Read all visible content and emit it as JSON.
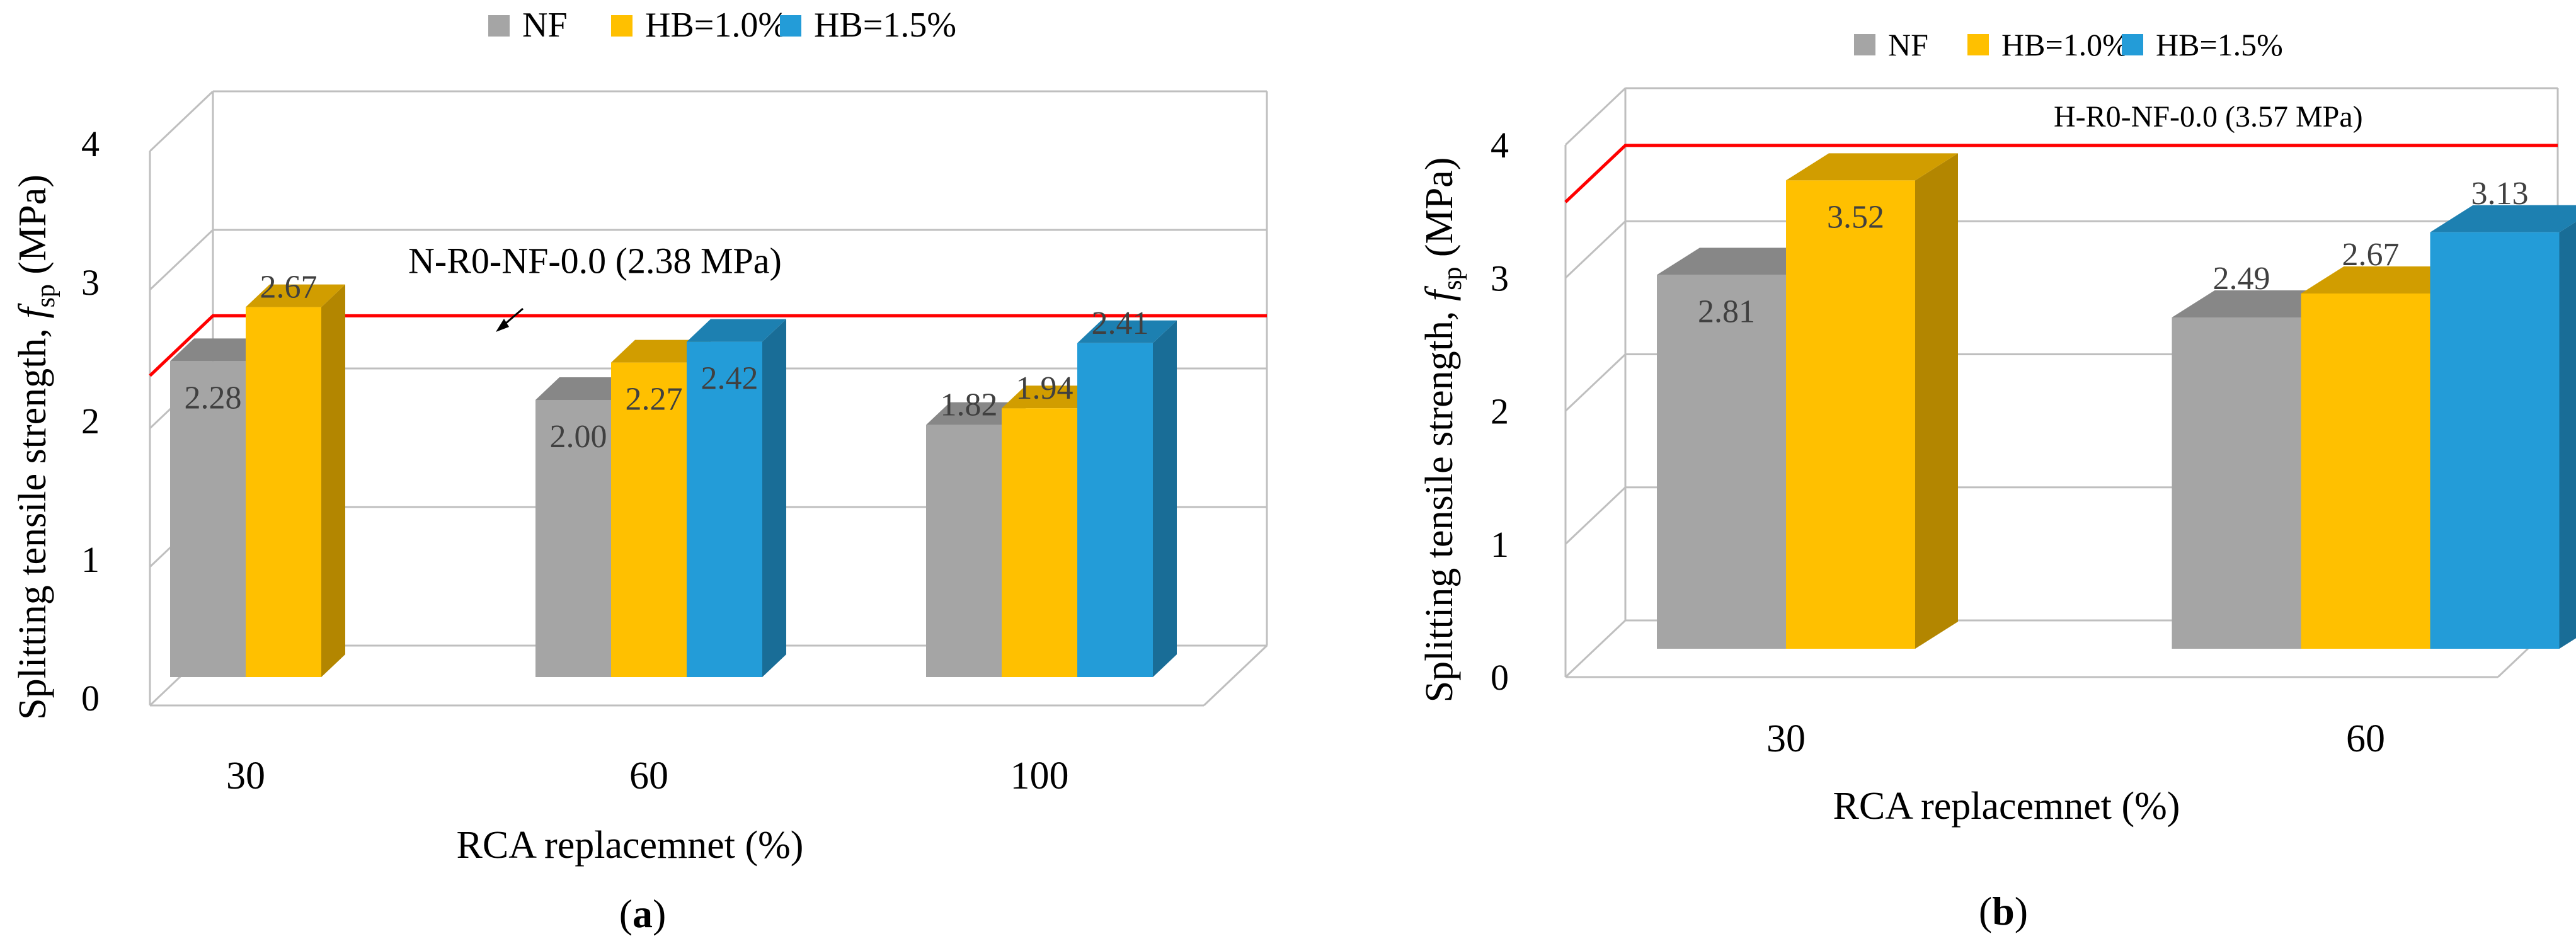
{
  "legend": [
    {
      "name": "NF",
      "color": "#A5A5A5"
    },
    {
      "name": "HB=1.0%",
      "color": "#FFC000"
    },
    {
      "name": "HB=1.5%",
      "color": "#239CD8"
    }
  ],
  "chart_data": [
    {
      "type": "bar",
      "id": "a",
      "panel_label_open": "(",
      "panel_label_letter": "a",
      "panel_label_close": ")",
      "ylabel_main": "Splitting tensile strength, ",
      "ylabel_var": "f",
      "ylabel_sub": "sp",
      "ylabel_unit": " (MPa)",
      "xlabel": "RCA replacemnet (%)",
      "categories": [
        "30",
        "60",
        "100"
      ],
      "ylim": [
        0,
        4
      ],
      "yticks": [
        "0",
        "1",
        "2",
        "3",
        "4"
      ],
      "series": [
        {
          "name": "NF",
          "values": [
            2.28,
            2.0,
            1.82
          ],
          "labels": [
            "2.28",
            "2.00",
            "1.82"
          ]
        },
        {
          "name": "HB=1.0%",
          "values": [
            2.67,
            2.27,
            1.94
          ],
          "labels": [
            "2.67",
            "2.27",
            "1.94"
          ]
        },
        {
          "name": "HB=1.5%",
          "values": [
            null,
            2.42,
            2.41
          ],
          "labels": [
            null,
            "2.42",
            "2.41"
          ]
        }
      ],
      "reference": {
        "value": 2.38,
        "label": "N-R0-NF-0.0 (2.38 MPa)"
      }
    },
    {
      "type": "bar",
      "id": "b",
      "panel_label_open": "(",
      "panel_label_letter": "b",
      "panel_label_close": ")",
      "ylabel_main": "Splitting tensile strength, ",
      "ylabel_var": "f",
      "ylabel_sub": "sp",
      "ylabel_unit": " (MPa)",
      "xlabel": "RCA replacemnet (%)",
      "categories": [
        "30",
        "60"
      ],
      "ylim": [
        0,
        4
      ],
      "yticks": [
        "0",
        "1",
        "2",
        "3",
        "4"
      ],
      "series": [
        {
          "name": "NF",
          "values": [
            2.81,
            2.49
          ],
          "labels": [
            "2.81",
            "2.49"
          ]
        },
        {
          "name": "HB=1.0%",
          "values": [
            3.52,
            2.67
          ],
          "labels": [
            "3.52",
            "2.67"
          ]
        },
        {
          "name": "HB=1.5%",
          "values": [
            null,
            3.13
          ],
          "labels": [
            null,
            "3.13"
          ]
        }
      ],
      "reference": {
        "value": 3.57,
        "label": "H-R0-NF-0.0 (3.57 MPa)"
      }
    }
  ]
}
